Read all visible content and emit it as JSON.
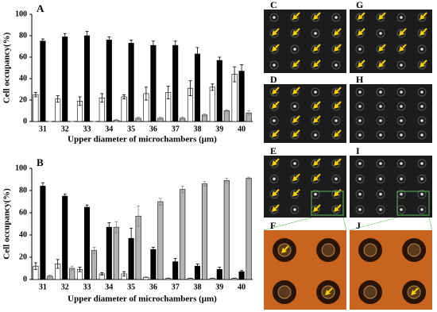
{
  "chart_data": [
    {
      "type": "bar",
      "title": "A",
      "y_label": "Cell occupancy(%)",
      "x_label": "Upper diameter of microchambers (μm)",
      "categories": [
        "31",
        "32",
        "33",
        "34",
        "35",
        "36",
        "37",
        "38",
        "39",
        "40"
      ],
      "series": [
        {
          "color": "#ffffff",
          "values": [
            25,
            21,
            19,
            22,
            23,
            26,
            27,
            31,
            32,
            44
          ],
          "errors": [
            2,
            3,
            4,
            4,
            2,
            6,
            6,
            7,
            3,
            7
          ]
        },
        {
          "color": "#000000",
          "values": [
            75,
            79,
            80,
            76,
            73,
            71,
            71,
            63,
            57,
            47
          ],
          "errors": [
            2,
            3,
            4,
            3,
            3,
            4,
            4,
            6,
            3,
            6
          ]
        },
        {
          "color": "#b3b3b3",
          "values": [
            0,
            0,
            0,
            1,
            3,
            3,
            3,
            6,
            10,
            8
          ],
          "errors": [
            0,
            0,
            0,
            1,
            1,
            1,
            1,
            1,
            1,
            2
          ]
        }
      ],
      "ylim": [
        0,
        100
      ],
      "yticks": [
        0,
        20,
        40,
        60,
        80,
        100
      ]
    },
    {
      "type": "bar",
      "title": "B",
      "y_label": "Cell occupancy(%)",
      "x_label": "Upper diameter of microchambers (μm)",
      "categories": [
        "31",
        "32",
        "33",
        "34",
        "35",
        "36",
        "37",
        "38",
        "39",
        "40"
      ],
      "series": [
        {
          "color": "#ffffff",
          "values": [
            12,
            14,
            9,
            5,
            5,
            2,
            1,
            1,
            1,
            1
          ],
          "errors": [
            3,
            4,
            2,
            1,
            2,
            0,
            0,
            0,
            0,
            0
          ]
        },
        {
          "color": "#000000",
          "values": [
            84,
            75,
            65,
            47,
            37,
            27,
            16,
            12,
            9,
            7
          ],
          "errors": [
            3,
            2,
            2,
            4,
            9,
            2,
            3,
            2,
            2,
            1
          ]
        },
        {
          "color": "#b3b3b3",
          "values": [
            3,
            10,
            26,
            47,
            57,
            70,
            81,
            86,
            89,
            91
          ],
          "errors": [
            1,
            2,
            3,
            5,
            9,
            3,
            3,
            2,
            2,
            1
          ]
        }
      ],
      "ylim": [
        0,
        100
      ],
      "yticks": [
        0,
        20,
        40,
        60,
        80,
        100
      ]
    }
  ],
  "panels": [
    {
      "label": "C"
    },
    {
      "label": "D"
    },
    {
      "label": "E"
    },
    {
      "label": "F"
    },
    {
      "label": "G"
    },
    {
      "label": "H"
    },
    {
      "label": "I"
    },
    {
      "label": "J"
    }
  ]
}
